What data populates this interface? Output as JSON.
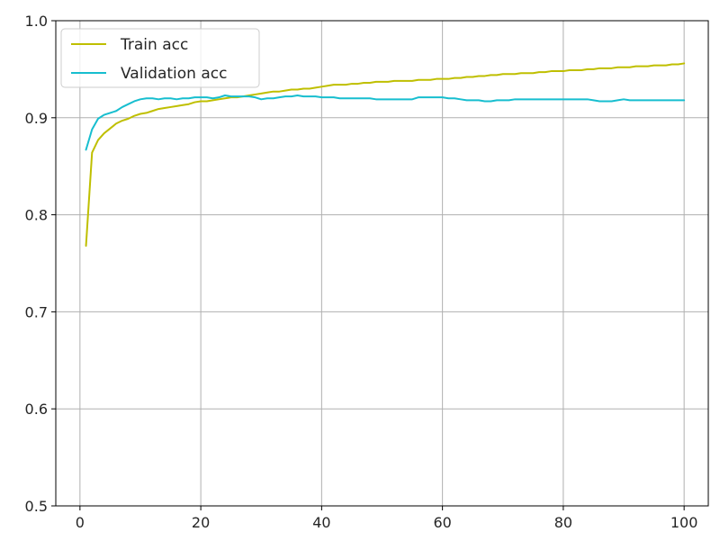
{
  "chart_data": {
    "type": "line",
    "xlim": [
      -4,
      104
    ],
    "ylim": [
      0.5,
      1.0
    ],
    "x_ticks": [
      0,
      20,
      40,
      60,
      80,
      100
    ],
    "y_ticks": [
      0.5,
      0.6,
      0.7,
      0.8,
      0.9,
      1.0
    ],
    "x_tick_labels": [
      "0",
      "20",
      "40",
      "60",
      "80",
      "100"
    ],
    "y_tick_labels": [
      "0.5",
      "0.6",
      "0.7",
      "0.8",
      "0.9",
      "1.0"
    ],
    "grid": true,
    "legend_position": "upper-left",
    "series": [
      {
        "name": "Train acc",
        "color": "#bfbf00",
        "x": [
          1,
          2,
          3,
          4,
          5,
          6,
          7,
          8,
          9,
          10,
          11,
          12,
          13,
          14,
          15,
          16,
          17,
          18,
          19,
          20,
          21,
          22,
          23,
          24,
          25,
          26,
          27,
          28,
          29,
          30,
          31,
          32,
          33,
          34,
          35,
          36,
          37,
          38,
          39,
          40,
          41,
          42,
          43,
          44,
          45,
          46,
          47,
          48,
          49,
          50,
          51,
          52,
          53,
          54,
          55,
          56,
          57,
          58,
          59,
          60,
          61,
          62,
          63,
          64,
          65,
          66,
          67,
          68,
          69,
          70,
          71,
          72,
          73,
          74,
          75,
          76,
          77,
          78,
          79,
          80,
          81,
          82,
          83,
          84,
          85,
          86,
          87,
          88,
          89,
          90,
          91,
          92,
          93,
          94,
          95,
          96,
          97,
          98,
          99,
          100
        ],
        "values": [
          0.768,
          0.864,
          0.877,
          0.884,
          0.889,
          0.894,
          0.897,
          0.899,
          0.902,
          0.904,
          0.905,
          0.907,
          0.909,
          0.91,
          0.911,
          0.912,
          0.913,
          0.914,
          0.916,
          0.917,
          0.917,
          0.918,
          0.919,
          0.92,
          0.921,
          0.921,
          0.922,
          0.923,
          0.924,
          0.925,
          0.926,
          0.927,
          0.927,
          0.928,
          0.929,
          0.929,
          0.93,
          0.93,
          0.931,
          0.932,
          0.933,
          0.934,
          0.934,
          0.934,
          0.935,
          0.935,
          0.936,
          0.936,
          0.937,
          0.937,
          0.937,
          0.938,
          0.938,
          0.938,
          0.938,
          0.939,
          0.939,
          0.939,
          0.94,
          0.94,
          0.94,
          0.941,
          0.941,
          0.942,
          0.942,
          0.943,
          0.943,
          0.944,
          0.944,
          0.945,
          0.945,
          0.945,
          0.946,
          0.946,
          0.946,
          0.947,
          0.947,
          0.948,
          0.948,
          0.948,
          0.949,
          0.949,
          0.949,
          0.95,
          0.95,
          0.951,
          0.951,
          0.951,
          0.952,
          0.952,
          0.952,
          0.953,
          0.953,
          0.953,
          0.954,
          0.954,
          0.954,
          0.955,
          0.955,
          0.956
        ]
      },
      {
        "name": "Validation acc",
        "color": "#17becf",
        "x": [
          1,
          2,
          3,
          4,
          5,
          6,
          7,
          8,
          9,
          10,
          11,
          12,
          13,
          14,
          15,
          16,
          17,
          18,
          19,
          20,
          21,
          22,
          23,
          24,
          25,
          26,
          27,
          28,
          29,
          30,
          31,
          32,
          33,
          34,
          35,
          36,
          37,
          38,
          39,
          40,
          41,
          42,
          43,
          44,
          45,
          46,
          47,
          48,
          49,
          50,
          51,
          52,
          53,
          54,
          55,
          56,
          57,
          58,
          59,
          60,
          61,
          62,
          63,
          64,
          65,
          66,
          67,
          68,
          69,
          70,
          71,
          72,
          73,
          74,
          75,
          76,
          77,
          78,
          79,
          80,
          81,
          82,
          83,
          84,
          85,
          86,
          87,
          88,
          89,
          90,
          91,
          92,
          93,
          94,
          95,
          96,
          97,
          98,
          99,
          100
        ],
        "values": [
          0.867,
          0.888,
          0.899,
          0.903,
          0.905,
          0.907,
          0.911,
          0.914,
          0.917,
          0.919,
          0.92,
          0.92,
          0.919,
          0.92,
          0.92,
          0.919,
          0.92,
          0.92,
          0.921,
          0.921,
          0.921,
          0.92,
          0.921,
          0.923,
          0.922,
          0.922,
          0.922,
          0.922,
          0.921,
          0.919,
          0.92,
          0.92,
          0.921,
          0.922,
          0.922,
          0.923,
          0.922,
          0.922,
          0.922,
          0.921,
          0.921,
          0.921,
          0.92,
          0.92,
          0.92,
          0.92,
          0.92,
          0.92,
          0.919,
          0.919,
          0.919,
          0.919,
          0.919,
          0.919,
          0.919,
          0.921,
          0.921,
          0.921,
          0.921,
          0.921,
          0.92,
          0.92,
          0.919,
          0.918,
          0.918,
          0.918,
          0.917,
          0.917,
          0.918,
          0.918,
          0.918,
          0.919,
          0.919,
          0.919,
          0.919,
          0.919,
          0.919,
          0.919,
          0.919,
          0.919,
          0.919,
          0.919,
          0.919,
          0.919,
          0.918,
          0.917,
          0.917,
          0.917,
          0.918,
          0.919,
          0.918,
          0.918,
          0.918,
          0.918,
          0.918,
          0.918,
          0.918,
          0.918,
          0.918,
          0.918
        ]
      }
    ]
  }
}
